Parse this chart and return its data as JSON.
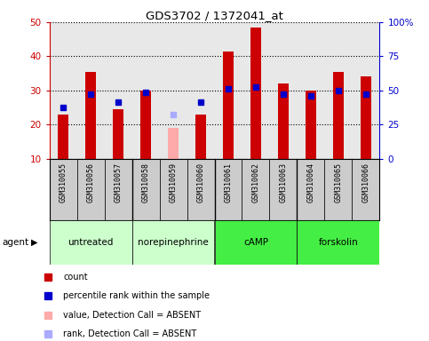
{
  "title": "GDS3702 / 1372041_at",
  "samples": [
    "GSM310055",
    "GSM310056",
    "GSM310057",
    "GSM310058",
    "GSM310059",
    "GSM310060",
    "GSM310061",
    "GSM310062",
    "GSM310063",
    "GSM310064",
    "GSM310065",
    "GSM310066"
  ],
  "red_values": [
    23,
    35.5,
    24.5,
    30,
    null,
    23,
    41.5,
    48.5,
    32,
    30,
    35.5,
    34
  ],
  "blue_values": [
    25,
    29,
    26.5,
    29.5,
    null,
    26.5,
    30.5,
    31,
    29,
    28.5,
    30,
    29
  ],
  "pink_value": 19,
  "pink_index": 4,
  "lightblue_value": 23,
  "lightblue_index": 4,
  "ylim_left": [
    10,
    50
  ],
  "ylim_right": [
    0,
    100
  ],
  "yticks_left": [
    10,
    20,
    30,
    40,
    50
  ],
  "ytick_labels_right": [
    "0",
    "25",
    "50",
    "75",
    "100%"
  ],
  "color_red": "#cc0000",
  "color_blue": "#0000cc",
  "color_pink": "#ffaaaa",
  "color_lightblue": "#aaaaff",
  "color_axis_left": "#cc0000",
  "color_axis_right": "#0000cc",
  "bar_width": 0.4,
  "blue_marker_size": 5,
  "agent_label": "agent",
  "background_plot": "#e8e8e8",
  "background_label": "#cccccc",
  "group_configs": [
    {
      "label": "untreated",
      "xstart": -0.5,
      "xend": 2.5,
      "color": "#ccffcc"
    },
    {
      "label": "norepinephrine",
      "xstart": 2.5,
      "xend": 5.5,
      "color": "#ccffcc"
    },
    {
      "label": "cAMP",
      "xstart": 5.5,
      "xend": 8.5,
      "color": "#44ee44"
    },
    {
      "label": "forskolin",
      "xstart": 8.5,
      "xend": 11.5,
      "color": "#44ee44"
    }
  ],
  "legend_items": [
    {
      "color": "#cc0000",
      "label": "count"
    },
    {
      "color": "#0000cc",
      "label": "percentile rank within the sample"
    },
    {
      "color": "#ffaaaa",
      "label": "value, Detection Call = ABSENT"
    },
    {
      "color": "#aaaaff",
      "label": "rank, Detection Call = ABSENT"
    }
  ]
}
